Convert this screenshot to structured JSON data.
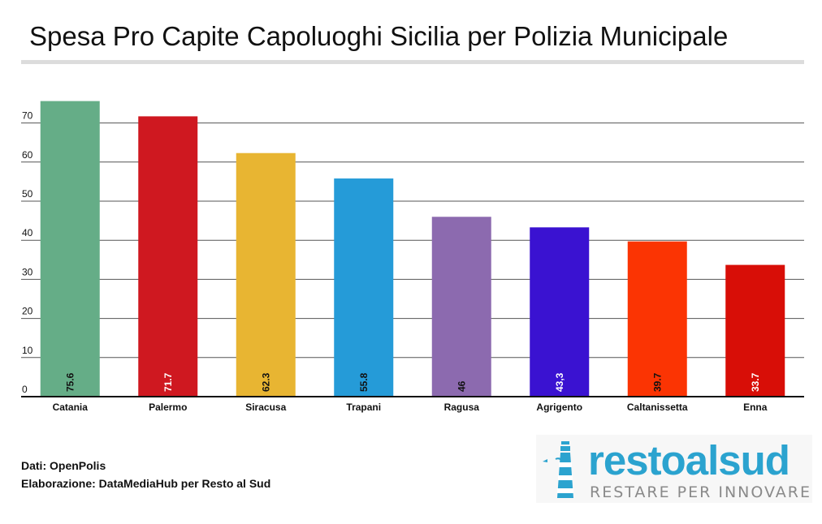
{
  "chart_data": {
    "type": "bar",
    "title": "Spesa Pro Capite Capoluoghi Sicilia per Polizia Municipale",
    "categories": [
      "Catania",
      "Palermo",
      "Siracusa",
      "Trapani",
      "Ragusa",
      "Agrigento",
      "Caltanissetta",
      "Enna"
    ],
    "values": [
      75.6,
      71.7,
      62.3,
      55.8,
      46,
      43.3,
      39.7,
      33.7
    ],
    "value_labels": [
      "75.6",
      "71.7",
      "62.3",
      "55.8",
      "46",
      "43,3",
      "39.7",
      "33.7"
    ],
    "colors": [
      "#65ad87",
      "#cf1820",
      "#e8b532",
      "#259bd8",
      "#8c6aaf",
      "#3a12d1",
      "#fb3403",
      "#d80e07"
    ],
    "label_colors": [
      "#111111",
      "#ffffff",
      "#111111",
      "#111111",
      "#111111",
      "#ffffff",
      "#111111",
      "#ffffff"
    ],
    "yticks": [
      0,
      10,
      20,
      30,
      40,
      50,
      60,
      70
    ],
    "ylim": [
      0,
      78
    ],
    "xlabel": "",
    "ylabel": "",
    "grid": true,
    "legend": "none"
  },
  "footer": {
    "source": "Dati: OpenPolis",
    "credit": "Elaborazione: DataMediaHub per Resto al Sud"
  },
  "logo": {
    "name": "restoalsud",
    "tagline": "RESTARE PER INNOVARE"
  }
}
